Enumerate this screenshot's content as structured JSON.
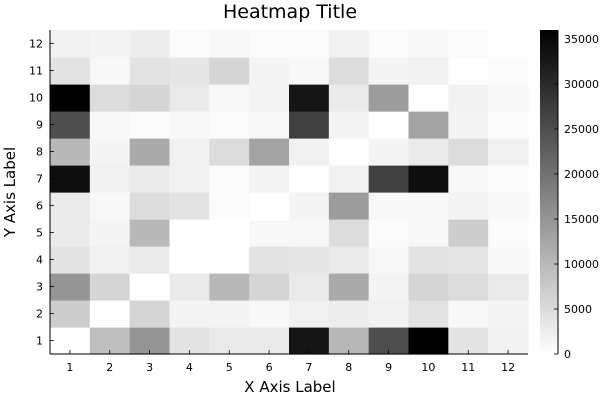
{
  "chart_data": {
    "type": "heatmap",
    "title": "Heatmap Title",
    "xlabel": "X Axis Label",
    "ylabel": "Y Axis Label",
    "x": [
      1,
      2,
      3,
      4,
      5,
      6,
      7,
      8,
      9,
      10,
      11,
      12
    ],
    "y": [
      1,
      2,
      3,
      4,
      5,
      6,
      7,
      8,
      9,
      10,
      11,
      12
    ],
    "colormap": "white-to-black",
    "colorbar": {
      "range": [
        0,
        36000
      ],
      "ticks": [
        0,
        5000,
        10000,
        15000,
        20000,
        25000,
        30000,
        35000
      ],
      "tick_labels": [
        "0",
        "5000",
        "10000",
        "15000",
        "20000",
        "25000",
        "30000",
        "35000"
      ]
    },
    "grid": false,
    "values": [
      [
        0,
        9000,
        15000,
        4000,
        3000,
        3000,
        33000,
        10000,
        25000,
        36000,
        4000,
        2000
      ],
      [
        7000,
        0,
        6000,
        1500,
        1500,
        1000,
        2000,
        2500,
        2000,
        4000,
        1000,
        1500
      ],
      [
        15000,
        6000,
        0,
        3000,
        10000,
        6000,
        3000,
        12000,
        1500,
        6000,
        5000,
        3000
      ],
      [
        4000,
        2000,
        3000,
        0,
        0,
        4000,
        3500,
        3000,
        1000,
        4000,
        3500,
        1000
      ],
      [
        3000,
        1500,
        10000,
        0,
        0,
        1000,
        1000,
        5000,
        500,
        1000,
        7000,
        500
      ],
      [
        3000,
        1000,
        5000,
        4000,
        500,
        0,
        1500,
        14000,
        1000,
        1000,
        1500,
        1000
      ],
      [
        34000,
        2000,
        3000,
        2000,
        500,
        1500,
        0,
        2000,
        27000,
        34000,
        1000,
        500
      ],
      [
        10000,
        1500,
        12000,
        2000,
        5000,
        13000,
        2000,
        0,
        1500,
        3000,
        5000,
        2000
      ],
      [
        25000,
        1000,
        500,
        1000,
        500,
        1000,
        27000,
        1500,
        0,
        13000,
        1500,
        500
      ],
      [
        36000,
        5000,
        6000,
        3000,
        1000,
        1500,
        33000,
        3000,
        14000,
        0,
        2000,
        1000
      ],
      [
        4000,
        1000,
        4000,
        3500,
        6000,
        1500,
        1000,
        5000,
        1500,
        2000,
        0,
        500
      ],
      [
        2000,
        1500,
        2500,
        500,
        1000,
        500,
        500,
        2000,
        500,
        1000,
        500,
        0
      ]
    ]
  }
}
